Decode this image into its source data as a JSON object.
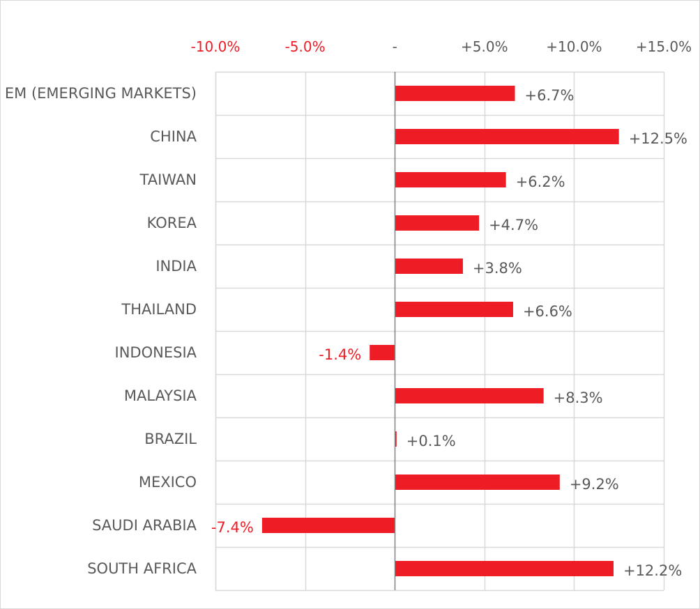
{
  "chart_data": {
    "type": "bar",
    "orientation": "horizontal",
    "categories": [
      "EM (EMERGING MARKETS)",
      "CHINA",
      "TAIWAN",
      "KOREA",
      "INDIA",
      "THAILAND",
      "INDONESIA",
      "MALAYSIA",
      "BRAZIL",
      "MEXICO",
      "SAUDI ARABIA",
      "SOUTH AFRICA"
    ],
    "values": [
      6.7,
      12.5,
      6.2,
      4.7,
      3.8,
      6.6,
      -1.4,
      8.3,
      0.1,
      9.2,
      -7.4,
      12.2
    ],
    "data_labels": [
      "+6.7%",
      "+12.5%",
      "+6.2%",
      "+4.7%",
      "+3.8%",
      "+6.6%",
      "-1.4%",
      "+8.3%",
      "+0.1%",
      "+9.2%",
      "-7.4%",
      "+12.2%"
    ],
    "xlim": [
      -10,
      15
    ],
    "x_ticks": [
      -10,
      -5,
      0,
      5,
      10,
      15
    ],
    "x_tick_labels": [
      "-10.0%",
      "-5.0%",
      "-",
      "+5.0%",
      "+10.0%",
      "+15.0%"
    ],
    "x_axis_position": "top",
    "grid": true,
    "title": "",
    "xlabel": "",
    "ylabel": "",
    "colors": {
      "bar": "#ee1c25",
      "negative_label": "#ee1c25",
      "positive_label": "#595959",
      "category_label": "#595959",
      "grid": "#d9d9d9",
      "zero_line": "#808080",
      "frame": "#d9d9d9"
    }
  }
}
